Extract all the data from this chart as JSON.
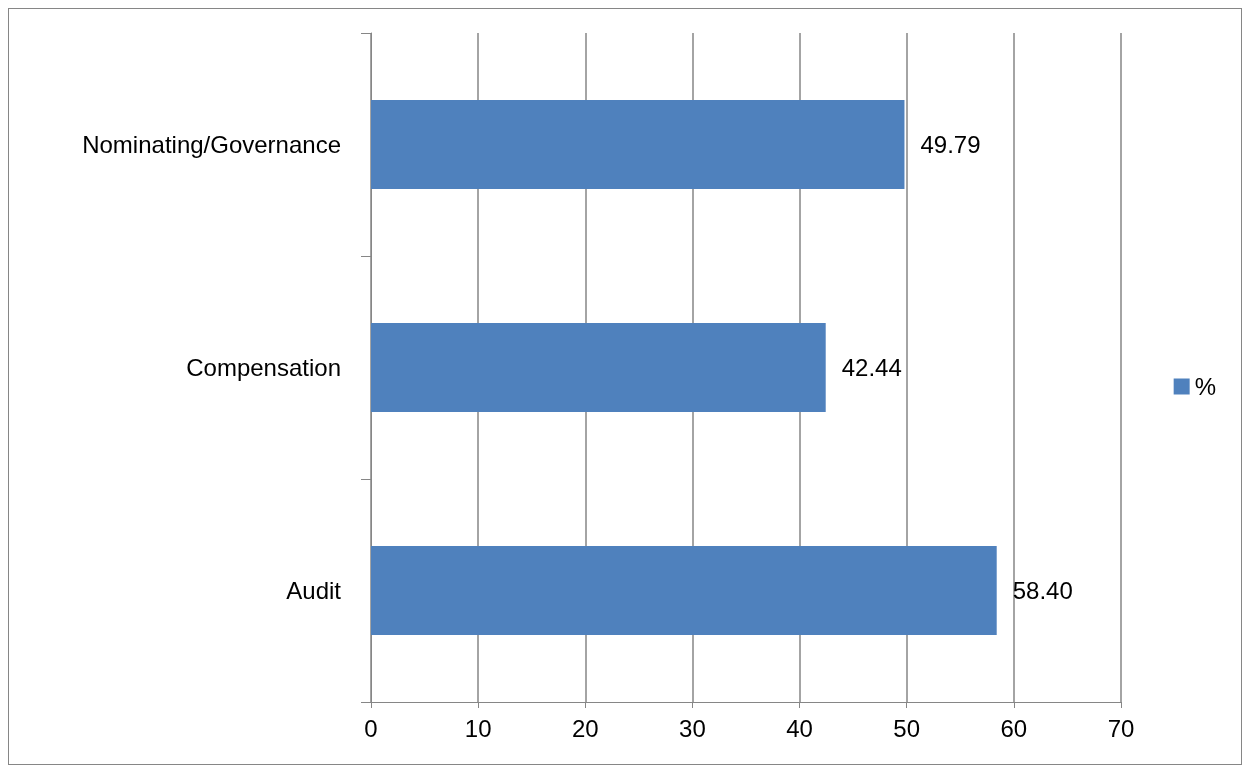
{
  "chart_data": {
    "type": "bar",
    "orientation": "horizontal",
    "categories": [
      "Nominating/Governance",
      "Compensation",
      "Audit"
    ],
    "series": [
      {
        "name": "%",
        "color": "#4f81bd",
        "values": [
          49.79,
          42.44,
          58.4
        ],
        "value_labels": [
          "49.79",
          "42.44",
          "58.40"
        ]
      }
    ],
    "xlim": [
      0,
      70
    ],
    "xticks": [
      0,
      10,
      20,
      30,
      40,
      50,
      60,
      70
    ],
    "grid": "x",
    "legend": "right"
  }
}
